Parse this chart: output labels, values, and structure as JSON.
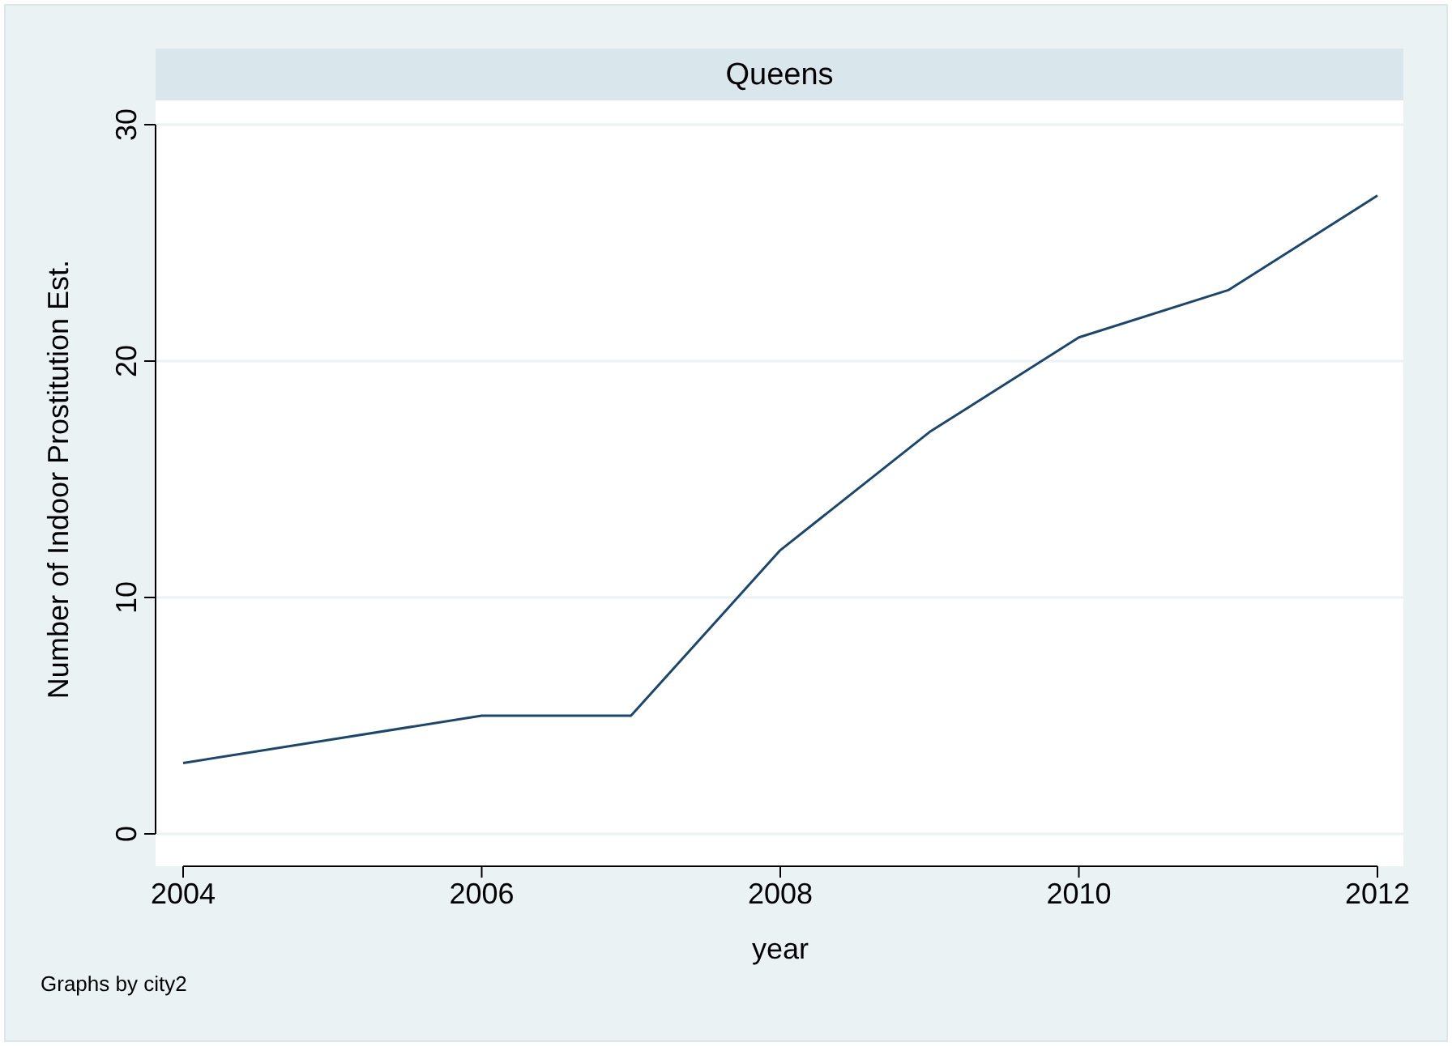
{
  "chart_data": {
    "type": "line",
    "title": "Queens",
    "xlabel": "year",
    "ylabel": "Number of Indoor Prostitution Est.",
    "x": [
      2004,
      2005,
      2006,
      2007,
      2008,
      2009,
      2010,
      2011,
      2012
    ],
    "series": [
      {
        "color": "#1a476f",
        "values": [
          3,
          4,
          5,
          5,
          12,
          17,
          21,
          23,
          27
        ]
      }
    ],
    "xlim": [
      2004,
      2012
    ],
    "xticks": [
      2004,
      2006,
      2008,
      2010,
      2012
    ],
    "ylim": [
      0,
      30
    ],
    "yticks": [
      0,
      10,
      20,
      30
    ],
    "grid": "y",
    "marker": "none",
    "line_style": "solid",
    "annotations": [
      "Graphs by city2"
    ]
  }
}
